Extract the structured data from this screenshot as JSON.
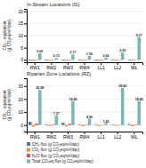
{
  "chart_data": [
    {
      "type": "bar",
      "title": "In-Stream Locations (IS)",
      "y_label": "CO₂ - equivalent\n(g CO₂eq/m²/day)",
      "categories": [
        "RW1",
        "RW2",
        "RW3",
        "RW4",
        "LL1",
        "LL2",
        "WL"
      ],
      "series": [
        {
          "values": [
            -0.35,
            -0.3,
            -0.28,
            -0.3,
            -0.32,
            -0.28,
            -0.25
          ]
        },
        {
          "values": [
            -0.45,
            -0.4,
            -0.35,
            -0.4,
            -0.42,
            -0.38,
            -0.3
          ]
        },
        {
          "values": [
            -0.2,
            -0.18,
            -0.15,
            -0.18,
            -0.2,
            -0.16,
            -0.12
          ]
        },
        {
          "values": [
            2.65,
            0.73,
            2.17,
            1.56,
            0.92,
            2.99,
            9.27
          ],
          "value_labels": [
            "2.65",
            "0.73",
            "2.17",
            "1.56",
            "0.92",
            "2.99",
            "9.27"
          ]
        }
      ],
      "ylim": [
        -1.0,
        21.0
      ],
      "yticks": [
        0,
        5,
        10,
        15,
        20
      ],
      "grid": true,
      "data_labels": true
    },
    {
      "type": "bar",
      "title": "Riparian Zone Locations (RZ)",
      "y_label": "CO₂ - equivalent\n(g CO₂eq/m²/day)",
      "categories": [
        "RW1",
        "RW2",
        "RW3",
        "RW4",
        "LL1",
        "LL2",
        "WL"
      ],
      "series": [
        {
          "name": "CH₄ flux (g CO₂eq/m²/day)",
          "values": [
            2.5,
            0.5,
            1.8,
            0.5,
            0.4,
            0.4,
            0.6
          ]
        },
        {
          "name": "CO₂ flux (g CO₂eq/m²/day)",
          "values": [
            -1.2,
            -0.8,
            -1.0,
            -0.9,
            -0.8,
            -0.7,
            -0.9
          ]
        },
        {
          "name": "N₂O flux (g CO₂eq/m²/day)",
          "values": [
            1.2,
            0.6,
            1.0,
            0.4,
            0.3,
            0.3,
            0.5
          ]
        },
        {
          "name": "Total CO₂eq flux (g CO₂eq/m²/day)",
          "values": [
            26.98,
            7.37,
            18.46,
            4.9,
            1.45,
            28.43,
            18.49
          ],
          "value_labels": [
            "26.98",
            "7.37",
            "18.46",
            "4.90",
            "1.45",
            "28.43",
            "18.49"
          ]
        }
      ],
      "ylim": [
        -5.0,
        36.0
      ],
      "yticks": [
        0,
        10,
        20,
        30
      ],
      "grid": true,
      "data_labels": true,
      "legend": "bottom"
    }
  ]
}
